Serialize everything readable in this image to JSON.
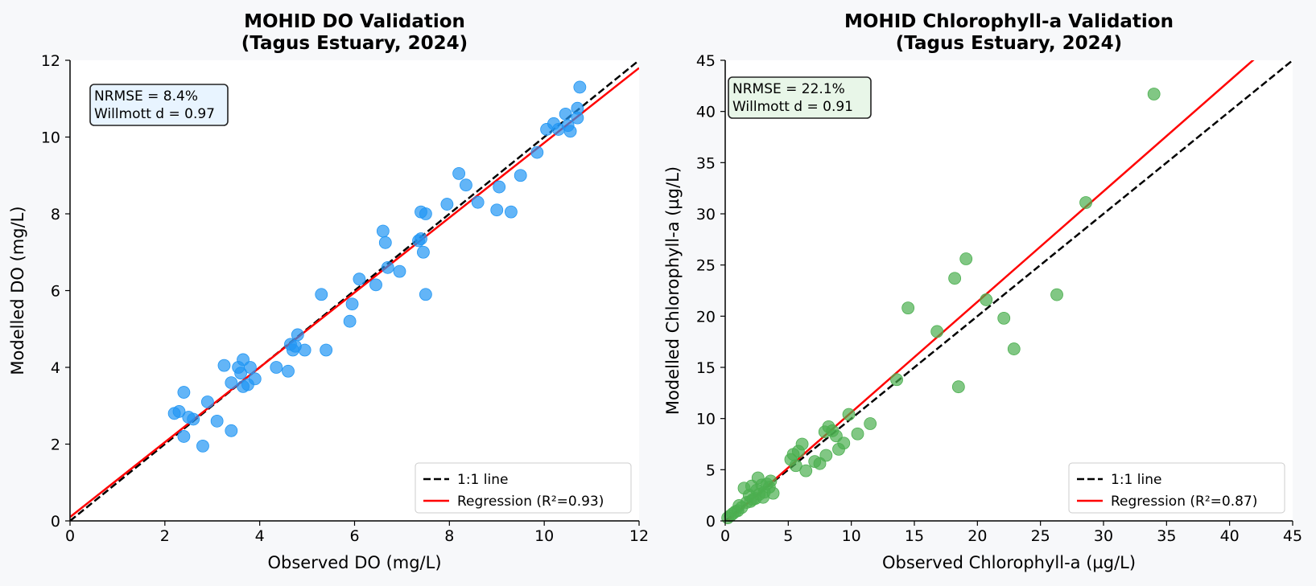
{
  "chart_data": [
    {
      "type": "scatter",
      "title": "MOHID DO Validation",
      "subtitle": "(Tagus Estuary, 2024)",
      "xlabel": "Observed DO (mg/L)",
      "ylabel": "Modelled DO (mg/L)",
      "xlim": [
        0,
        12
      ],
      "ylim": [
        0,
        12
      ],
      "xticks": [
        "0",
        "2",
        "4",
        "6",
        "8",
        "10",
        "12"
      ],
      "yticks": [
        "0",
        "2",
        "4",
        "6",
        "8",
        "10",
        "12"
      ],
      "grid": false,
      "colors": {
        "points": "#2196f3",
        "identity": "#000000",
        "regression": "#ff0000",
        "stats_box": "#e8f4ff"
      },
      "stats": [
        "NRMSE = 8.4%",
        "Willmott d = 0.97"
      ],
      "legend": {
        "placement": "lower-right",
        "entries": [
          "1:1 line",
          "Regression (R²=0.93)"
        ]
      },
      "regression": {
        "slope": 0.975,
        "intercept": 0.1
      },
      "points": [
        [
          2.2,
          2.8
        ],
        [
          2.3,
          2.85
        ],
        [
          2.4,
          3.35
        ],
        [
          2.4,
          2.2
        ],
        [
          2.5,
          2.7
        ],
        [
          2.6,
          2.65
        ],
        [
          2.8,
          1.95
        ],
        [
          2.9,
          3.1
        ],
        [
          3.1,
          2.6
        ],
        [
          3.25,
          4.05
        ],
        [
          3.4,
          3.6
        ],
        [
          3.4,
          2.35
        ],
        [
          3.55,
          4.0
        ],
        [
          3.6,
          3.85
        ],
        [
          3.65,
          4.2
        ],
        [
          3.65,
          3.5
        ],
        [
          3.75,
          3.55
        ],
        [
          3.8,
          4.0
        ],
        [
          3.9,
          3.7
        ],
        [
          4.35,
          4.0
        ],
        [
          4.6,
          3.9
        ],
        [
          4.65,
          4.6
        ],
        [
          4.7,
          4.45
        ],
        [
          4.75,
          4.55
        ],
        [
          4.8,
          4.85
        ],
        [
          4.95,
          4.45
        ],
        [
          5.3,
          5.9
        ],
        [
          5.4,
          4.45
        ],
        [
          5.9,
          5.2
        ],
        [
          5.95,
          5.65
        ],
        [
          6.1,
          6.3
        ],
        [
          6.45,
          6.15
        ],
        [
          6.6,
          7.55
        ],
        [
          6.65,
          7.25
        ],
        [
          6.7,
          6.6
        ],
        [
          6.95,
          6.5
        ],
        [
          7.35,
          7.3
        ],
        [
          7.4,
          8.05
        ],
        [
          7.4,
          7.35
        ],
        [
          7.45,
          7.0
        ],
        [
          7.5,
          5.9
        ],
        [
          7.5,
          8.0
        ],
        [
          7.95,
          8.25
        ],
        [
          8.2,
          9.05
        ],
        [
          8.35,
          8.75
        ],
        [
          8.6,
          8.3
        ],
        [
          9.0,
          8.1
        ],
        [
          9.05,
          8.7
        ],
        [
          9.3,
          8.05
        ],
        [
          9.5,
          9.0
        ],
        [
          9.85,
          9.6
        ],
        [
          10.05,
          10.2
        ],
        [
          10.2,
          10.35
        ],
        [
          10.3,
          10.2
        ],
        [
          10.45,
          10.6
        ],
        [
          10.5,
          10.3
        ],
        [
          10.55,
          10.15
        ],
        [
          10.7,
          10.75
        ],
        [
          10.7,
          10.5
        ],
        [
          10.75,
          11.3
        ]
      ]
    },
    {
      "type": "scatter",
      "title": "MOHID Chlorophyll-a Validation",
      "subtitle": "(Tagus Estuary, 2024)",
      "xlabel": "Observed Chlorophyll-a (µg/L)",
      "ylabel": "Modelled Chlorophyll-a (µg/L)",
      "xlim": [
        0,
        45
      ],
      "ylim": [
        0,
        45
      ],
      "xticks": [
        "0",
        "5",
        "10",
        "15",
        "20",
        "25",
        "30",
        "35",
        "40",
        "45"
      ],
      "yticks": [
        "0",
        "5",
        "10",
        "15",
        "20",
        "25",
        "30",
        "35",
        "40",
        "45"
      ],
      "grid": false,
      "colors": {
        "points": "#4caf50",
        "identity": "#000000",
        "regression": "#ff0000",
        "stats_box": "#e8f6e8"
      },
      "stats": [
        "NRMSE = 22.1%",
        "Willmott d = 0.91"
      ],
      "legend": {
        "placement": "lower-right",
        "entries": [
          "1:1 line",
          "Regression (R²=0.87)"
        ]
      },
      "regression": {
        "slope": 1.08,
        "intercept": -0.2
      },
      "points": [
        [
          0.2,
          0.3
        ],
        [
          0.4,
          0.5
        ],
        [
          0.6,
          0.7
        ],
        [
          0.8,
          0.9
        ],
        [
          1.0,
          1.0
        ],
        [
          1.1,
          1.5
        ],
        [
          1.3,
          1.3
        ],
        [
          1.5,
          3.2
        ],
        [
          1.7,
          1.8
        ],
        [
          1.9,
          2.5
        ],
        [
          2.0,
          1.9
        ],
        [
          2.1,
          3.4
        ],
        [
          2.2,
          2.1
        ],
        [
          2.4,
          2.2
        ],
        [
          2.5,
          3.0
        ],
        [
          2.6,
          4.2
        ],
        [
          2.7,
          2.6
        ],
        [
          2.9,
          3.5
        ],
        [
          3.0,
          2.3
        ],
        [
          3.1,
          2.8
        ],
        [
          3.3,
          3.6
        ],
        [
          3.5,
          3.3
        ],
        [
          3.6,
          3.9
        ],
        [
          3.8,
          2.7
        ],
        [
          5.2,
          6.0
        ],
        [
          5.4,
          6.5
        ],
        [
          5.6,
          5.4
        ],
        [
          5.8,
          6.8
        ],
        [
          6.1,
          7.5
        ],
        [
          6.4,
          4.9
        ],
        [
          7.1,
          5.8
        ],
        [
          7.5,
          5.6
        ],
        [
          7.9,
          8.7
        ],
        [
          8.0,
          6.4
        ],
        [
          8.2,
          9.2
        ],
        [
          8.5,
          8.8
        ],
        [
          8.8,
          8.3
        ],
        [
          9.0,
          7.0
        ],
        [
          9.4,
          7.6
        ],
        [
          9.8,
          10.4
        ],
        [
          10.5,
          8.5
        ],
        [
          11.5,
          9.5
        ],
        [
          13.6,
          13.8
        ],
        [
          14.5,
          20.8
        ],
        [
          16.8,
          18.5
        ],
        [
          18.2,
          23.7
        ],
        [
          18.5,
          13.1
        ],
        [
          19.1,
          25.6
        ],
        [
          20.7,
          21.6
        ],
        [
          22.1,
          19.8
        ],
        [
          22.9,
          16.8
        ],
        [
          26.3,
          22.1
        ],
        [
          28.6,
          31.1
        ],
        [
          34.0,
          41.7
        ]
      ]
    }
  ]
}
